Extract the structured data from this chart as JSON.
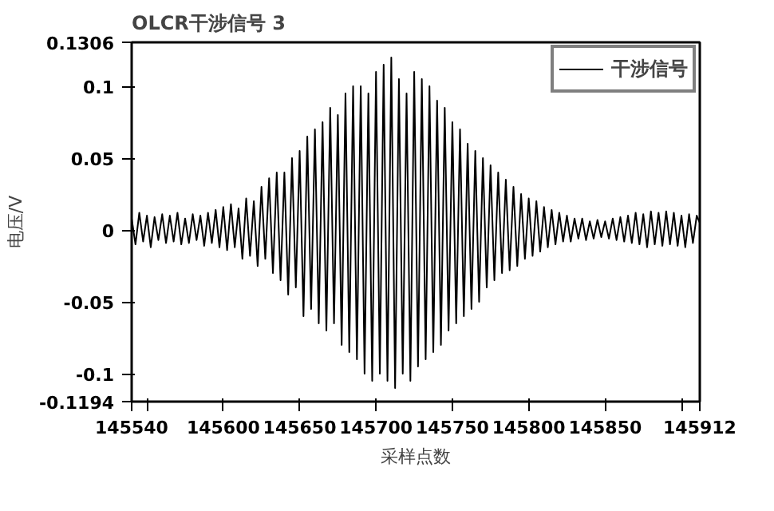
{
  "chart_data": {
    "type": "line",
    "title": "OLCR干涉信号 3",
    "xlabel": "采样点数",
    "ylabel": "电压/V",
    "xlim": [
      145540,
      145912
    ],
    "ylim": [
      -0.1194,
      0.1306
    ],
    "xticks": [
      145540,
      {
        "value": 145550,
        "label": null
      },
      145600,
      145650,
      145700,
      145750,
      145800,
      145850,
      {
        "value": 145900,
        "label": null
      },
      145912
    ],
    "yticks": [
      -0.1194,
      -0.1,
      -0.05,
      0,
      0.05,
      0.1,
      0.1306
    ],
    "grid": false,
    "legend": "top right",
    "marker": "none",
    "line_style": "solid",
    "series": [
      {
        "name": "干涉信号",
        "color": "#000000",
        "x": [
          145540,
          145542.5,
          145545,
          145547.5,
          145550,
          145552.5,
          145555,
          145557.5,
          145560,
          145562.5,
          145565,
          145567.5,
          145570,
          145572.5,
          145575,
          145577.5,
          145580,
          145582.5,
          145585,
          145587.5,
          145590,
          145592.5,
          145595,
          145597.5,
          145600,
          145602.5,
          145605,
          145607.5,
          145610,
          145612.5,
          145615,
          145617.5,
          145620,
          145622.5,
          145625,
          145627.5,
          145630,
          145632.5,
          145635,
          145637.5,
          145640,
          145642.5,
          145645,
          145647.5,
          145650,
          145652.5,
          145655,
          145657.5,
          145660,
          145662.5,
          145665,
          145667.5,
          145670,
          145672.5,
          145675,
          145677.5,
          145680,
          145682.5,
          145685,
          145687.5,
          145690,
          145692.5,
          145695,
          145697.5,
          145700,
          145702.5,
          145705,
          145707.5,
          145710,
          145712.5,
          145715,
          145717.5,
          145720,
          145722.5,
          145725,
          145727.5,
          145730,
          145732.5,
          145735,
          145737.5,
          145740,
          145742.5,
          145745,
          145747.5,
          145750,
          145752.5,
          145755,
          145757.5,
          145760,
          145762.5,
          145765,
          145767.5,
          145770,
          145772.5,
          145775,
          145777.5,
          145780,
          145782.5,
          145785,
          145787.5,
          145790,
          145792.5,
          145795,
          145797.5,
          145800,
          145802.5,
          145805,
          145807.5,
          145810,
          145812.5,
          145815,
          145817.5,
          145820,
          145822.5,
          145825,
          145827.5,
          145830,
          145832.5,
          145835,
          145837.5,
          145840,
          145842.5,
          145845,
          145847.5,
          145850,
          145852.5,
          145855,
          145857.5,
          145860,
          145862.5,
          145865,
          145867.5,
          145870,
          145872.5,
          145875,
          145877.5,
          145880,
          145882.5,
          145885,
          145887.5,
          145890,
          145892.5,
          145895,
          145897.5,
          145900,
          145902.5,
          145905,
          145907.5,
          145910,
          145912
        ],
        "values": [
          0.008,
          -0.01,
          0.012,
          -0.008,
          0.01,
          -0.012,
          0.009,
          -0.007,
          0.011,
          -0.009,
          0.01,
          -0.008,
          0.012,
          -0.01,
          0.008,
          -0.009,
          0.011,
          -0.007,
          0.01,
          -0.011,
          0.012,
          -0.009,
          0.014,
          -0.012,
          0.016,
          -0.014,
          0.018,
          -0.012,
          0.015,
          -0.02,
          0.022,
          -0.018,
          0.02,
          -0.025,
          0.03,
          -0.02,
          0.036,
          -0.03,
          0.04,
          -0.035,
          0.04,
          -0.045,
          0.05,
          -0.04,
          0.055,
          -0.06,
          0.065,
          -0.055,
          0.07,
          -0.065,
          0.075,
          -0.07,
          0.085,
          -0.065,
          0.08,
          -0.08,
          0.095,
          -0.085,
          0.1,
          -0.09,
          0.1,
          -0.1,
          0.095,
          -0.105,
          0.11,
          -0.1,
          0.115,
          -0.105,
          0.12,
          -0.11,
          0.105,
          -0.1,
          0.095,
          -0.105,
          0.11,
          -0.095,
          0.105,
          -0.09,
          0.1,
          -0.085,
          0.09,
          -0.08,
          0.085,
          -0.07,
          0.075,
          -0.065,
          0.07,
          -0.06,
          0.06,
          -0.055,
          0.055,
          -0.05,
          0.05,
          -0.04,
          0.045,
          -0.035,
          0.04,
          -0.03,
          0.035,
          -0.028,
          0.03,
          -0.025,
          0.025,
          -0.02,
          0.022,
          -0.018,
          0.02,
          -0.015,
          0.016,
          -0.012,
          0.014,
          -0.01,
          0.012,
          -0.008,
          0.01,
          -0.008,
          0.008,
          -0.006,
          0.008,
          -0.007,
          0.006,
          -0.006,
          0.007,
          -0.005,
          0.006,
          -0.006,
          0.008,
          -0.007,
          0.009,
          -0.008,
          0.01,
          -0.009,
          0.012,
          -0.01,
          0.011,
          -0.012,
          0.013,
          -0.01,
          0.012,
          -0.011,
          0.013,
          -0.01,
          0.012,
          -0.011,
          0.01,
          -0.012,
          0.011,
          -0.009,
          0.01,
          0.005
        ]
      }
    ]
  }
}
